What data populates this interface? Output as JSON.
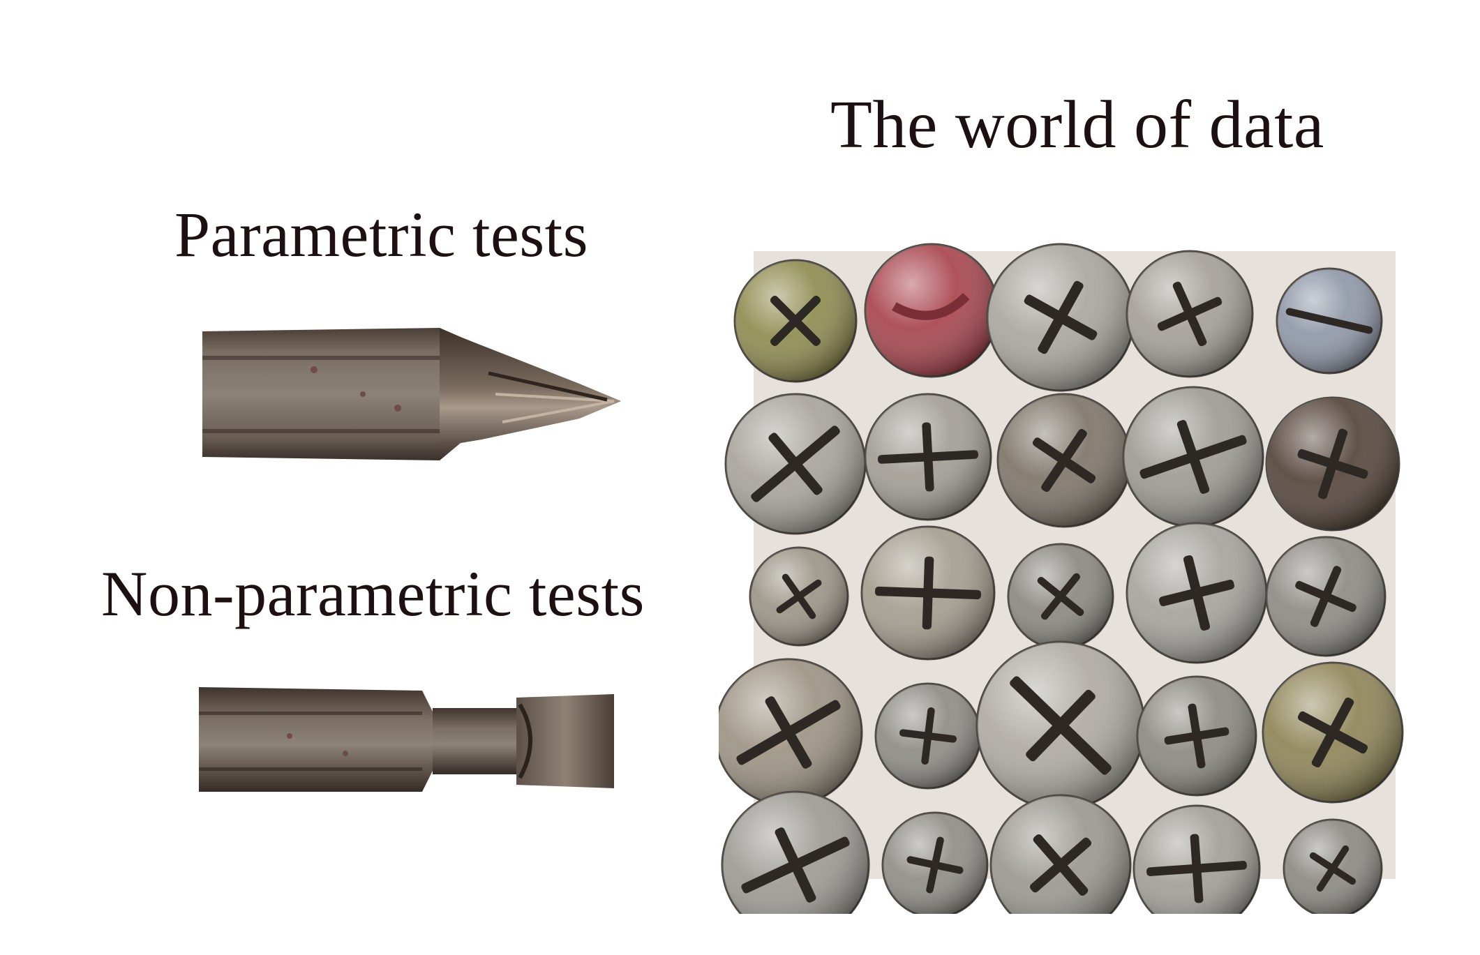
{
  "labels": {
    "world": "The world of data",
    "parametric": "Parametric tests",
    "nonparametric": "Non-parametric tests"
  },
  "colors": {
    "background": "#ffffff",
    "text": "#1c1010",
    "bit_metal": "#6e6257",
    "screw_silver": "#a8a49c",
    "screw_red": "#a8434c",
    "screw_brown": "#54443a",
    "screw_gold": "#8e8456"
  },
  "screws": [
    {
      "c": "#8e8a4e",
      "r": 1,
      "drive": "phillips"
    },
    {
      "c": "#a8434c",
      "r": 1,
      "drive": "slot-soft"
    },
    {
      "c": "#a9a59e",
      "r": 1,
      "drive": "phillips"
    },
    {
      "c": "#a39f97",
      "r": 1,
      "drive": "phillips"
    },
    {
      "c": "#8e96a6",
      "r": 1,
      "drive": "slot"
    },
    {
      "c": "#a7a39b",
      "r": 1,
      "drive": "combo"
    },
    {
      "c": "#a19d95",
      "r": 1,
      "drive": "combo"
    },
    {
      "c": "#7d7468",
      "r": 1,
      "drive": "phillips"
    },
    {
      "c": "#9d9a93",
      "r": 1,
      "drive": "combo"
    },
    {
      "c": "#54443a",
      "r": 1,
      "drive": "phillips"
    },
    {
      "c": "#9a9486",
      "r": 1,
      "drive": "phillips"
    },
    {
      "c": "#a39d8e",
      "r": 1,
      "drive": "combo"
    },
    {
      "c": "#8a8780",
      "r": 1,
      "drive": "phillips"
    },
    {
      "c": "#a6a39d",
      "r": 1,
      "drive": "phillips"
    },
    {
      "c": "#8d8a84",
      "r": 1,
      "drive": "phillips"
    },
    {
      "c": "#9c9282",
      "r": 1,
      "drive": "combo"
    },
    {
      "c": "#8e8b85",
      "r": 1,
      "drive": "phillips"
    },
    {
      "c": "#aeaaa2",
      "r": 1,
      "drive": "combo"
    },
    {
      "c": "#8b8880",
      "r": 1,
      "drive": "phillips"
    },
    {
      "c": "#8e8456",
      "r": 1,
      "drive": "phillips"
    },
    {
      "c": "#9d9a94",
      "r": 1,
      "drive": "combo"
    },
    {
      "c": "#8f8c86",
      "r": 1,
      "drive": "phillips"
    },
    {
      "c": "#9a978f",
      "r": 1,
      "drive": "phillips"
    },
    {
      "c": "#a19e97",
      "r": 1,
      "drive": "combo"
    },
    {
      "c": "#8b8882",
      "r": 1,
      "drive": "phillips"
    }
  ]
}
